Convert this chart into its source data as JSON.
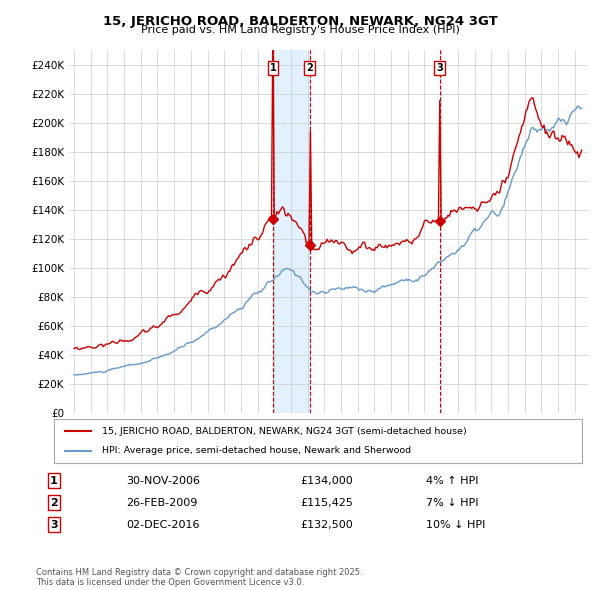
{
  "title": "15, JERICHO ROAD, BALDERTON, NEWARK, NG24 3GT",
  "subtitle": "Price paid vs. HM Land Registry's House Price Index (HPI)",
  "ylim": [
    0,
    250000
  ],
  "yticks": [
    0,
    20000,
    40000,
    60000,
    80000,
    100000,
    120000,
    140000,
    160000,
    180000,
    200000,
    220000,
    240000
  ],
  "sale_color": "#cc0000",
  "hpi_color": "#6699cc",
  "vline_color": "#cc0000",
  "shade_color": "#ddeeff",
  "transactions": [
    {
      "label": "1",
      "date_num": 2006.917,
      "price": 134000,
      "pct": "4%",
      "direction": "↑",
      "date_str": "30-NOV-2006"
    },
    {
      "label": "2",
      "date_num": 2009.125,
      "price": 115425,
      "pct": "7%",
      "direction": "↓",
      "date_str": "26-FEB-2009"
    },
    {
      "label": "3",
      "date_num": 2016.917,
      "price": 132500,
      "pct": "10%",
      "direction": "↓",
      "date_str": "02-DEC-2016"
    }
  ],
  "legend_sale_label": "15, JERICHO ROAD, BALDERTON, NEWARK, NG24 3GT (semi-detached house)",
  "legend_hpi_label": "HPI: Average price, semi-detached house, Newark and Sherwood",
  "footer": "Contains HM Land Registry data © Crown copyright and database right 2025.\nThis data is licensed under the Open Government Licence v3.0.",
  "background_color": "#ffffff",
  "grid_color": "#cccccc"
}
